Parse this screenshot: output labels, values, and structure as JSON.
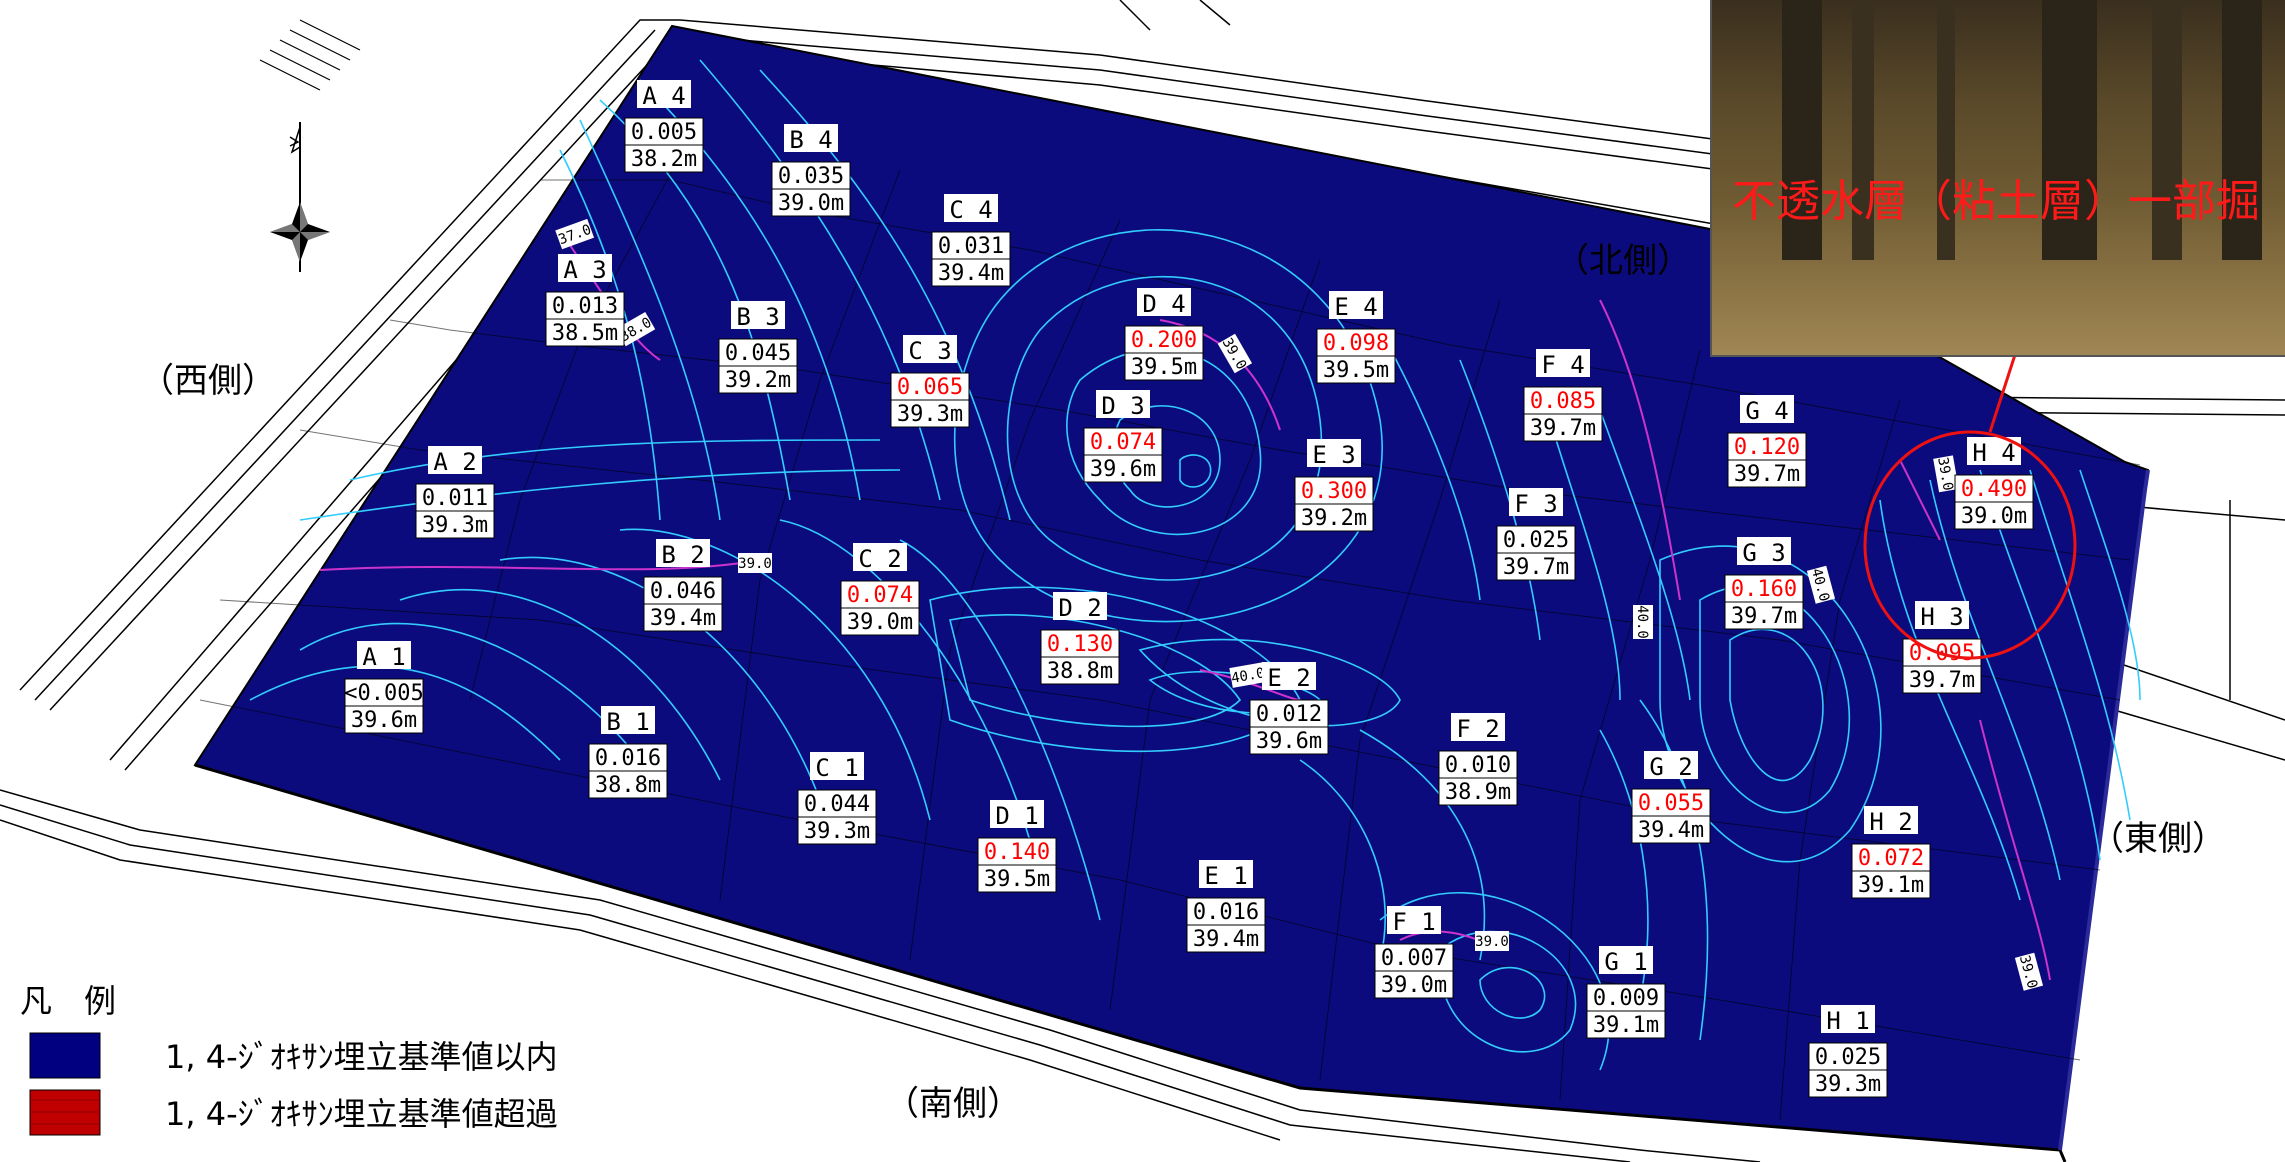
{
  "directions": {
    "north": "（北側）",
    "west": "（西側）",
    "east": "（東側）",
    "south": "（南側）"
  },
  "photo": {
    "caption": "不透水層（粘土層）一部掘"
  },
  "legend": {
    "title": "凡　例",
    "items": [
      {
        "label": "1, 4-ｼﾞｵｷｻﾝ埋立基準値以内",
        "color": "#000080"
      },
      {
        "label": "1, 4-ｼﾞｵｷｻﾝ埋立基準値超過",
        "color": "#c00000"
      }
    ]
  },
  "colors": {
    "site_fill": "#0b0b7e",
    "contour": "#33ccff",
    "contour_major": "#cc33cc",
    "exceed_text": "#ff0000",
    "normal_text": "#000000"
  },
  "contour_labels": [
    "37.0",
    "38.0",
    "39.0",
    "39.0",
    "40.0",
    "40.0",
    "40.0",
    "39.0",
    "39.0",
    "39.0"
  ],
  "points": [
    {
      "id": "A 4",
      "value": "0.005",
      "elev": "38.2m",
      "exceed": false
    },
    {
      "id": "A 3",
      "value": "0.013",
      "elev": "38.5m",
      "exceed": false
    },
    {
      "id": "A 2",
      "value": "0.011",
      "elev": "39.3m",
      "exceed": false
    },
    {
      "id": "A 1",
      "value": "<0.005",
      "elev": "39.6m",
      "exceed": false
    },
    {
      "id": "B 4",
      "value": "0.035",
      "elev": "39.0m",
      "exceed": false
    },
    {
      "id": "B 3",
      "value": "0.045",
      "elev": "39.2m",
      "exceed": false
    },
    {
      "id": "B 2",
      "value": "0.046",
      "elev": "39.4m",
      "exceed": false
    },
    {
      "id": "B 1",
      "value": "0.016",
      "elev": "38.8m",
      "exceed": false
    },
    {
      "id": "C 4",
      "value": "0.031",
      "elev": "39.4m",
      "exceed": false
    },
    {
      "id": "C 3",
      "value": "0.065",
      "elev": "39.3m",
      "exceed": true
    },
    {
      "id": "C 2",
      "value": "0.074",
      "elev": "39.0m",
      "exceed": true
    },
    {
      "id": "C 1",
      "value": "0.044",
      "elev": "39.3m",
      "exceed": false
    },
    {
      "id": "D 4",
      "value": "0.200",
      "elev": "39.5m",
      "exceed": true
    },
    {
      "id": "D 3",
      "value": "0.074",
      "elev": "39.6m",
      "exceed": true
    },
    {
      "id": "D 2",
      "value": "0.130",
      "elev": "38.8m",
      "exceed": true
    },
    {
      "id": "D 1",
      "value": "0.140",
      "elev": "39.5m",
      "exceed": true
    },
    {
      "id": "E 4",
      "value": "0.098",
      "elev": "39.5m",
      "exceed": true
    },
    {
      "id": "E 3",
      "value": "0.300",
      "elev": "39.2m",
      "exceed": true
    },
    {
      "id": "E 2",
      "value": "0.012",
      "elev": "39.6m",
      "exceed": false
    },
    {
      "id": "E 1",
      "value": "0.016",
      "elev": "39.4m",
      "exceed": false
    },
    {
      "id": "F 4",
      "value": "0.085",
      "elev": "39.7m",
      "exceed": true
    },
    {
      "id": "F 3",
      "value": "0.025",
      "elev": "39.7m",
      "exceed": false
    },
    {
      "id": "F 2",
      "value": "0.010",
      "elev": "38.9m",
      "exceed": false
    },
    {
      "id": "F 1",
      "value": "0.007",
      "elev": "39.0m",
      "exceed": false
    },
    {
      "id": "G 4",
      "value": "0.120",
      "elev": "39.7m",
      "exceed": true
    },
    {
      "id": "G 3",
      "value": "0.160",
      "elev": "39.7m",
      "exceed": true
    },
    {
      "id": "G 2",
      "value": "0.055",
      "elev": "39.4m",
      "exceed": true
    },
    {
      "id": "G 1",
      "value": "0.009",
      "elev": "39.1m",
      "exceed": false
    },
    {
      "id": "H 4",
      "value": "0.490",
      "elev": "39.0m",
      "exceed": true
    },
    {
      "id": "H 3",
      "value": "0.095",
      "elev": "39.7m",
      "exceed": true
    },
    {
      "id": "H 2",
      "value": "0.072",
      "elev": "39.1m",
      "exceed": true
    },
    {
      "id": "H 1",
      "value": "0.025",
      "elev": "39.3m",
      "exceed": false
    }
  ]
}
